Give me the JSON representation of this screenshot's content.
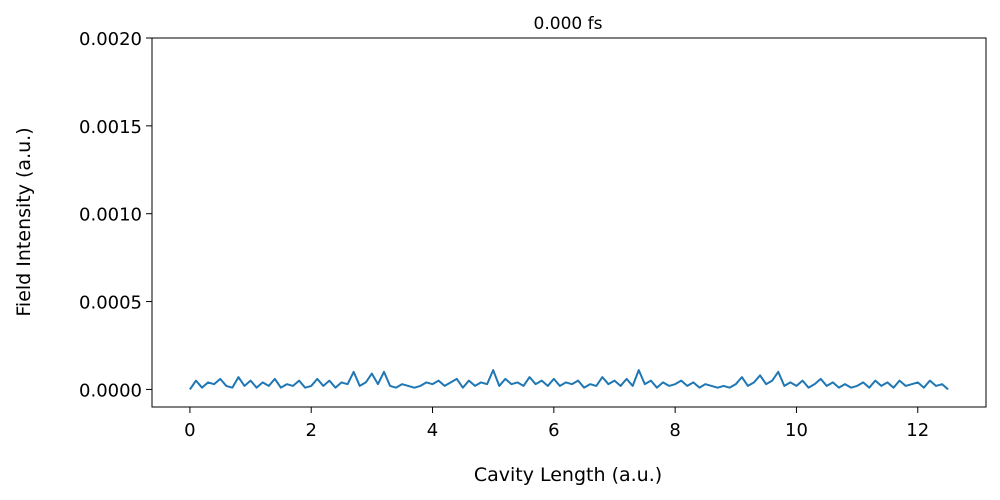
{
  "chart_data": {
    "type": "line",
    "title": "0.000 fs",
    "xlabel": "Cavity Length (a.u.)",
    "ylabel": "Field Intensity (a.u.)",
    "xlim": [
      -0.625,
      13.125
    ],
    "ylim": [
      -0.0001,
      0.002
    ],
    "xticks": [
      0,
      2,
      4,
      6,
      8,
      10,
      12
    ],
    "xtick_labels": [
      "0",
      "2",
      "4",
      "6",
      "8",
      "10",
      "12"
    ],
    "yticks": [
      0.0,
      0.0005,
      0.001,
      0.0015,
      0.002
    ],
    "ytick_labels": [
      "0.0000",
      "0.0005",
      "0.0010",
      "0.0015",
      "0.0020"
    ],
    "grid": false,
    "series": [
      {
        "color": "#1f77b4",
        "x": [
          0.0,
          0.1,
          0.2,
          0.3,
          0.4,
          0.5,
          0.6,
          0.7,
          0.8,
          0.9,
          1.0,
          1.1,
          1.2,
          1.3,
          1.4,
          1.5,
          1.6,
          1.7,
          1.8,
          1.9,
          2.0,
          2.1,
          2.2,
          2.3,
          2.4,
          2.5,
          2.6,
          2.7,
          2.8,
          2.9,
          3.0,
          3.1,
          3.2,
          3.3,
          3.4,
          3.5,
          3.6,
          3.7,
          3.8,
          3.9,
          4.0,
          4.1,
          4.2,
          4.3,
          4.4,
          4.5,
          4.6,
          4.7,
          4.8,
          4.9,
          5.0,
          5.1,
          5.2,
          5.3,
          5.4,
          5.5,
          5.6,
          5.7,
          5.8,
          5.9,
          6.0,
          6.1,
          6.2,
          6.3,
          6.4,
          6.5,
          6.6,
          6.7,
          6.8,
          6.9,
          7.0,
          7.1,
          7.2,
          7.3,
          7.4,
          7.5,
          7.6,
          7.7,
          7.8,
          7.9,
          8.0,
          8.1,
          8.2,
          8.3,
          8.4,
          8.5,
          8.6,
          8.7,
          8.8,
          8.9,
          9.0,
          9.1,
          9.2,
          9.3,
          9.4,
          9.5,
          9.6,
          9.7,
          9.8,
          9.9,
          10.0,
          10.1,
          10.2,
          10.3,
          10.4,
          10.5,
          10.6,
          10.7,
          10.8,
          10.9,
          11.0,
          11.1,
          11.2,
          11.3,
          11.4,
          11.5,
          11.6,
          11.7,
          11.8,
          11.9,
          12.0,
          12.1,
          12.2,
          12.3,
          12.4,
          12.5
        ],
        "y": [
          0.0,
          5e-05,
          1e-05,
          4e-05,
          3e-05,
          6e-05,
          2e-05,
          1e-05,
          7e-05,
          2e-05,
          5e-05,
          1e-05,
          4e-05,
          2e-05,
          6e-05,
          1e-05,
          3e-05,
          2e-05,
          5e-05,
          1e-05,
          2e-05,
          6e-05,
          2e-05,
          5e-05,
          1e-05,
          4e-05,
          3e-05,
          0.0001,
          2e-05,
          4e-05,
          9e-05,
          3e-05,
          0.0001,
          2e-05,
          1e-05,
          3e-05,
          2e-05,
          1e-05,
          2e-05,
          4e-05,
          3e-05,
          5e-05,
          2e-05,
          4e-05,
          6e-05,
          1e-05,
          5e-05,
          2e-05,
          4e-05,
          3e-05,
          0.00011,
          2e-05,
          6e-05,
          3e-05,
          4e-05,
          2e-05,
          7e-05,
          3e-05,
          5e-05,
          2e-05,
          6e-05,
          2e-05,
          4e-05,
          3e-05,
          5e-05,
          1e-05,
          3e-05,
          2e-05,
          7e-05,
          3e-05,
          5e-05,
          2e-05,
          6e-05,
          2e-05,
          0.00011,
          3e-05,
          5e-05,
          1e-05,
          4e-05,
          2e-05,
          3e-05,
          5e-05,
          2e-05,
          4e-05,
          1e-05,
          3e-05,
          2e-05,
          1e-05,
          2e-05,
          1e-05,
          3e-05,
          7e-05,
          2e-05,
          4e-05,
          8e-05,
          3e-05,
          5e-05,
          0.0001,
          2e-05,
          4e-05,
          2e-05,
          5e-05,
          1e-05,
          3e-05,
          6e-05,
          2e-05,
          4e-05,
          1e-05,
          3e-05,
          1e-05,
          2e-05,
          4e-05,
          1e-05,
          5e-05,
          2e-05,
          4e-05,
          1e-05,
          5e-05,
          2e-05,
          3e-05,
          4e-05,
          1e-05,
          5e-05,
          2e-05,
          3e-05,
          0.0
        ]
      }
    ]
  }
}
